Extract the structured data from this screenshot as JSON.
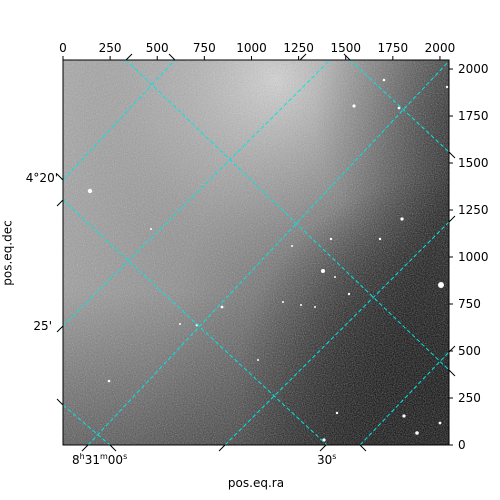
{
  "figure": {
    "xlabel": "pos.eq.ra",
    "ylabel": "pos.eq.dec",
    "top_ticks": [
      "0",
      "250",
      "500",
      "750",
      "1000",
      "1250",
      "1500",
      "1750",
      "2000"
    ],
    "right_ticks": [
      "0",
      "250",
      "500",
      "750",
      "1000",
      "1250",
      "1500",
      "1750",
      "2000"
    ],
    "bottom_ticks": [
      {
        "main": "8",
        "h": "h",
        "m_val": "31",
        "m": "m",
        "s_val": "00",
        "s": "s"
      },
      {
        "main": "30",
        "s": "s"
      }
    ],
    "left_ticks": [
      "4°20'",
      "25'"
    ],
    "pixel_range": [
      0,
      2048
    ],
    "grid_color": "#00e5e5",
    "image_description_palette": [
      "#ffffff",
      "#000000"
    ]
  }
}
